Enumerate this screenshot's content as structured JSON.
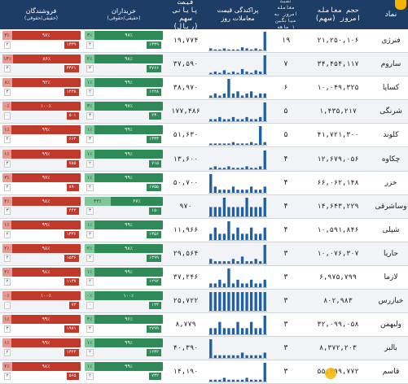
{
  "header": {
    "name": "نماد",
    "volume": "حجم معامله",
    "volume_sub": "امروز (سهم)",
    "ratio": "نسبت معامله",
    "ratio_sub": "امروز به میانگین",
    "ratio_sub2": "۱ ماهه",
    "chart": "پراکندگی قیمت",
    "chart_sub": "معاملات روز",
    "price": "قیمت پایانی",
    "price_sub": "سهم (ریال)",
    "buyers": "خریداران",
    "buyers_sub": "(حقیقی/حقوقی)",
    "sellers": "فروشندگان",
    "sellers_sub": "(حقیقی/حقوقی)"
  },
  "colors": {
    "header_bg": "#1e3d66",
    "bar": "#1f5fa6",
    "buy": "#2e8b57",
    "sell": "#c0392b",
    "accent": "#f2b600"
  },
  "rows": [
    {
      "name": "فنرژی",
      "volume": "۲۱,۲۵۰,۱۰۶",
      "ratio": "۱۹",
      "price": "۱۹,۷۷۴",
      "bars": [
        2,
        1,
        1,
        2,
        1,
        1,
        1,
        3,
        2,
        1,
        2,
        1,
        18
      ],
      "buy": {
        "a": "۹۷٪",
        "b": "۳٪",
        "la": "۱۳۳۹",
        "lb": "۴"
      },
      "sell": {
        "a": "۹۷٪",
        "b": "۳٪",
        "la": "۱۳۳۹",
        "lb": "۲"
      }
    },
    {
      "name": "ساروم",
      "volume": "۳۴,۴۵۴,۱۱۷",
      "ratio": "۷",
      "price": "۳۷,۵۹۰",
      "bars": [
        1,
        2,
        1,
        3,
        1,
        2,
        1,
        4,
        2,
        1,
        3,
        2,
        15
      ],
      "buy": {
        "a": "۹۸٪",
        "b": "۲٪",
        "la": "۳۷۶۶",
        "lb": "۳"
      },
      "sell": {
        "a": "۸۶٪",
        "b": "۱۴٪",
        "la": "۳۴۲۱",
        "lb": "۴"
      }
    },
    {
      "name": "کساپا",
      "volume": "۱۰,۰۴۹,۳۲۵",
      "ratio": "۶",
      "price": "۳۸,۹۷۰",
      "bars": [
        1,
        2,
        1,
        2,
        9,
        2,
        3,
        1,
        2,
        3,
        1,
        2,
        2
      ],
      "buy": {
        "a": "۹۹٪",
        "b": "۱٪",
        "la": "۱۲۲۸",
        "lb": "۲"
      },
      "sell": {
        "a": "۹۲٪",
        "b": "۸٪",
        "la": "۱۲۳۸",
        "lb": "۳"
      }
    },
    {
      "name": "شرنگی",
      "volume": "۱,۴۳۵,۲۱۷",
      "ratio": "۵",
      "price": "۱۷۷,۴۸۶",
      "bars": [
        1,
        1,
        2,
        1,
        1,
        2,
        1,
        1,
        2,
        1,
        1,
        2,
        9
      ],
      "buy": {
        "a": "۹۷٪",
        "b": "۳٪",
        "la": "۲۳۰",
        "lb": "۳"
      },
      "sell": {
        "a": "۱۰۰٪",
        "b": "۰٪",
        "la": "۵۰۱",
        "lb": "۰"
      }
    },
    {
      "name": "کلوند",
      "volume": "۴۱,۷۲۱,۳۰۰",
      "ratio": "۵",
      "price": "۵۱,۶۳۰",
      "bars": [
        1,
        1,
        1,
        1,
        1,
        2,
        1,
        1,
        1,
        2,
        1,
        14,
        2
      ],
      "buy": {
        "a": "۹۹٪",
        "b": "۱٪",
        "la": "۱۳۳۳",
        "lb": "۳"
      },
      "sell": {
        "a": "۹۹٪",
        "b": "۱٪",
        "la": "۶۶۴",
        "lb": "۲"
      }
    },
    {
      "name": "چکاوه",
      "volume": "۱۲,۶۷۹,۰۵۶",
      "ratio": "۴",
      "price": "۱۳,۶۰۰",
      "bars": [
        1,
        2,
        1,
        1,
        2,
        1,
        1,
        1,
        2,
        1,
        1,
        2,
        13
      ],
      "buy": {
        "a": "۹۹٪",
        "b": "۱٪",
        "la": "۷۱۵",
        "lb": "۲"
      },
      "sell": {
        "a": "۹۹٪",
        "b": "۱٪",
        "la": "۷۸۵",
        "lb": "۳"
      }
    },
    {
      "name": "خزر",
      "volume": "۶۶,۰۶۲,۱۴۸",
      "ratio": "۴",
      "price": "۵۰,۷۰۰",
      "bars": [
        6,
        2,
        1,
        1,
        1,
        2,
        1,
        1,
        1,
        2,
        1,
        1,
        2
      ],
      "buy": {
        "a": "۹۹٪",
        "b": "۱٪",
        "la": "۱۷۵۵",
        "lb": "۲"
      },
      "sell": {
        "a": "۹۷٪",
        "b": "۳٪",
        "la": "۸۹۰",
        "lb": "۲"
      }
    },
    {
      "name": "وساشرقی",
      "volume": "۱۴,۶۴۳,۲۲۹",
      "ratio": "۴",
      "price": "۹۷۰",
      "bars": [
        1,
        1,
        1,
        2,
        1,
        1,
        1,
        1,
        2,
        1,
        1,
        1,
        2
      ],
      "buy": {
        "a": "۶۷٪",
        "b": "۳۳٪",
        "la": "۱۵۰",
        "lb": "۳"
      },
      "sell": {
        "a": "۹۸٪",
        "b": "۲٪",
        "la": "۴۴۳",
        "lb": "۳"
      }
    },
    {
      "name": "شپلی",
      "volume": "۱۰,۵۹۱,۸۴۶",
      "ratio": "۴",
      "price": "۱۱,۹۶۶",
      "bars": [
        1,
        2,
        1,
        1,
        3,
        1,
        2,
        1,
        1,
        2,
        1,
        1,
        2
      ],
      "buy": {
        "a": "۹۹٪",
        "b": "۱٪",
        "la": "۱۳۵۶",
        "lb": "۲"
      },
      "sell": {
        "a": "۹۹٪",
        "b": "۱٪",
        "la": "۱۳۳۶",
        "lb": "۲"
      }
    },
    {
      "name": "حاریا",
      "volume": "۱۰,۰۷۶,۳۰۷",
      "ratio": "۳",
      "price": "۲۹,۵۶۴",
      "bars": [
        2,
        1,
        1,
        1,
        1,
        2,
        1,
        3,
        1,
        1,
        2,
        1,
        8
      ],
      "buy": {
        "a": "۹۸٪",
        "b": "۲٪",
        "la": "۱۳۹۹",
        "lb": "۲"
      },
      "sell": {
        "a": "۹۸٪",
        "b": "۲٪",
        "la": "۱۵۳۶",
        "lb": "۲"
      }
    },
    {
      "name": "لازما",
      "volume": "۶,۹۷۵,۷۹۹",
      "ratio": "۳",
      "price": "۳۷,۲۴۶",
      "bars": [
        1,
        1,
        2,
        1,
        5,
        1,
        2,
        1,
        1,
        2,
        1,
        1,
        2
      ],
      "buy": {
        "a": "۹۹٪",
        "b": "۱٪",
        "la": "۱۲۹۲",
        "lb": "۲"
      },
      "sell": {
        "a": "۹۸٪",
        "b": "۲٪",
        "la": "۱۱۳۷",
        "lb": "۲"
      }
    },
    {
      "name": "خبازرس",
      "volume": "۸۰۲,۹۸۳",
      "ratio": "۳",
      "price": "۲۵,۷۲۲",
      "bars": [
        1,
        1,
        1,
        1,
        1,
        1,
        1,
        1,
        1,
        1,
        1,
        1,
        1
      ],
      "buy": {
        "a": "۱۰۰٪",
        "b": "۰٪",
        "la": "۱۲۴",
        "lb": "۰"
      },
      "sell": {
        "a": "۱۰۰٪",
        "b": "۰٪",
        "la": "۷۳",
        "lb": "۰"
      }
    },
    {
      "name": "ولبهمن",
      "volume": "۳۲,۰۹۹,۰۵۸",
      "ratio": "۳",
      "price": "۸,۷۷۹",
      "bars": [
        1,
        1,
        2,
        1,
        1,
        1,
        2,
        1,
        1,
        2,
        1,
        1,
        3
      ],
      "buy": {
        "a": "۹۶٪",
        "b": "۴٪",
        "la": "۲۷۹۹",
        "lb": "۴"
      },
      "sell": {
        "a": "۹۹٪",
        "b": "۱٪",
        "la": "۱۹۷۱",
        "lb": "۳"
      }
    },
    {
      "name": "بالبر",
      "volume": "۸,۳۷۲,۲۰۳",
      "ratio": "۳",
      "price": "۴۰,۳۹۰",
      "bars": [
        7,
        1,
        1,
        1,
        1,
        1,
        1,
        2,
        1,
        1,
        1,
        1,
        2
      ],
      "buy": {
        "a": "۹۹٪",
        "b": "۱٪",
        "la": "۱۲۳۲",
        "lb": "۲"
      },
      "sell": {
        "a": "۹۹٪",
        "b": "۱٪",
        "la": "۱۳۲۴",
        "lb": "۲"
      }
    },
    {
      "name": "قاسم",
      "volume": "۵۵,۲۹۹,۷۷۲",
      "ratio": "۳",
      "price": "۱۴,۱۹۰",
      "bars": [
        1,
        1,
        1,
        2,
        1,
        1,
        1,
        1,
        2,
        1,
        1,
        1,
        10
      ],
      "buy": {
        "a": "۹۹٪",
        "b": "۱٪",
        "la": "۷۳۲",
        "lb": "۲"
      },
      "sell": {
        "a": "۹۸٪",
        "b": "۲٪",
        "la": "۵۶۵",
        "lb": "۲"
      }
    }
  ]
}
